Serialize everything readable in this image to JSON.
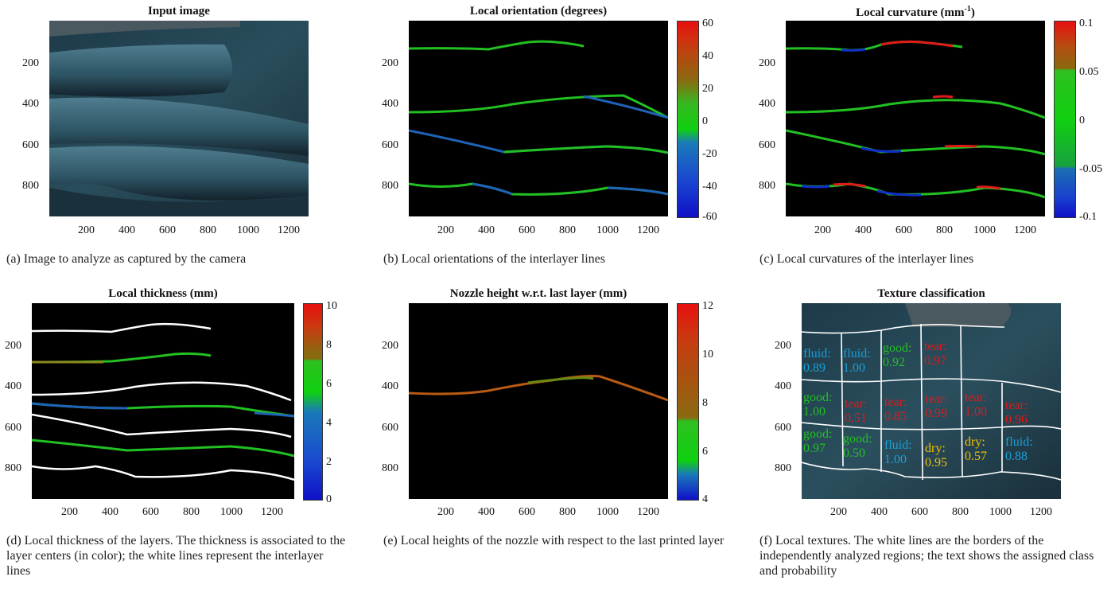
{
  "panels": {
    "a": {
      "title": "Input image",
      "caption": "(a) Image to analyze as captured by the camera"
    },
    "b": {
      "title": "Local orientation (degrees)",
      "caption": "(b) Local orientations of the interlayer lines"
    },
    "c": {
      "title_main": "Local curvature (mm",
      "title_sup": "-1",
      "title_end": ")",
      "caption": "(c) Local curvatures of the interlayer lines"
    },
    "d": {
      "title": "Local thickness (mm)",
      "caption": "(d) Local thickness of the layers. The thickness is associated to the layer centers (in color); the white lines represent the interlayer lines"
    },
    "e": {
      "title": "Nozzle height w.r.t. last layer (mm)",
      "caption": "(e) Local heights of the nozzle with respect to the last printed layer"
    },
    "f": {
      "title": "Texture classification",
      "caption": "(f) Local textures. The white lines are the borders of the independently analyzed regions; the text shows the assigned class and probability"
    }
  },
  "axes": {
    "x_ticks": [
      "200",
      "400",
      "600",
      "800",
      "1000",
      "1200"
    ],
    "y_ticks": [
      "200",
      "400",
      "600",
      "800"
    ]
  },
  "colorbars": {
    "b": [
      "60",
      "40",
      "20",
      "0",
      "-20",
      "-40",
      "-60"
    ],
    "c": [
      "0.1",
      "0.05",
      "0",
      "-0.05",
      "-0.1"
    ],
    "d": [
      "10",
      "8",
      "6",
      "4",
      "2",
      "0"
    ],
    "e": [
      "12",
      "10",
      "8",
      "6",
      "4"
    ]
  },
  "textures": [
    {
      "cls": "fluid:",
      "p": "0.89",
      "color": "#1a9fd8"
    },
    {
      "cls": "fluid:",
      "p": "1.00",
      "color": "#1a9fd8"
    },
    {
      "cls": "good:",
      "p": "0.92",
      "color": "#22c022"
    },
    {
      "cls": "tear:",
      "p": "0.97",
      "color": "#e01a1a"
    },
    {
      "cls": "good:",
      "p": "1.00",
      "color": "#22c022"
    },
    {
      "cls": "tear:",
      "p": "0.51",
      "color": "#e01a1a"
    },
    {
      "cls": "tear:",
      "p": "0.85",
      "color": "#e01a1a"
    },
    {
      "cls": "tear:",
      "p": "0.99",
      "color": "#e01a1a"
    },
    {
      "cls": "tear:",
      "p": "1.00",
      "color": "#e01a1a"
    },
    {
      "cls": "tear:",
      "p": "0.96",
      "color": "#e01a1a"
    },
    {
      "cls": "good:",
      "p": "0.97",
      "color": "#22c022"
    },
    {
      "cls": "good:",
      "p": "0.50",
      "color": "#22c022"
    },
    {
      "cls": "fluid:",
      "p": "1.00",
      "color": "#1a9fd8"
    },
    {
      "cls": "dry:",
      "p": "0.95",
      "color": "#f0c000"
    },
    {
      "cls": "dry:",
      "p": "0.57",
      "color": "#f0c000"
    },
    {
      "cls": "fluid:",
      "p": "0.88",
      "color": "#1a9fd8"
    }
  ]
}
